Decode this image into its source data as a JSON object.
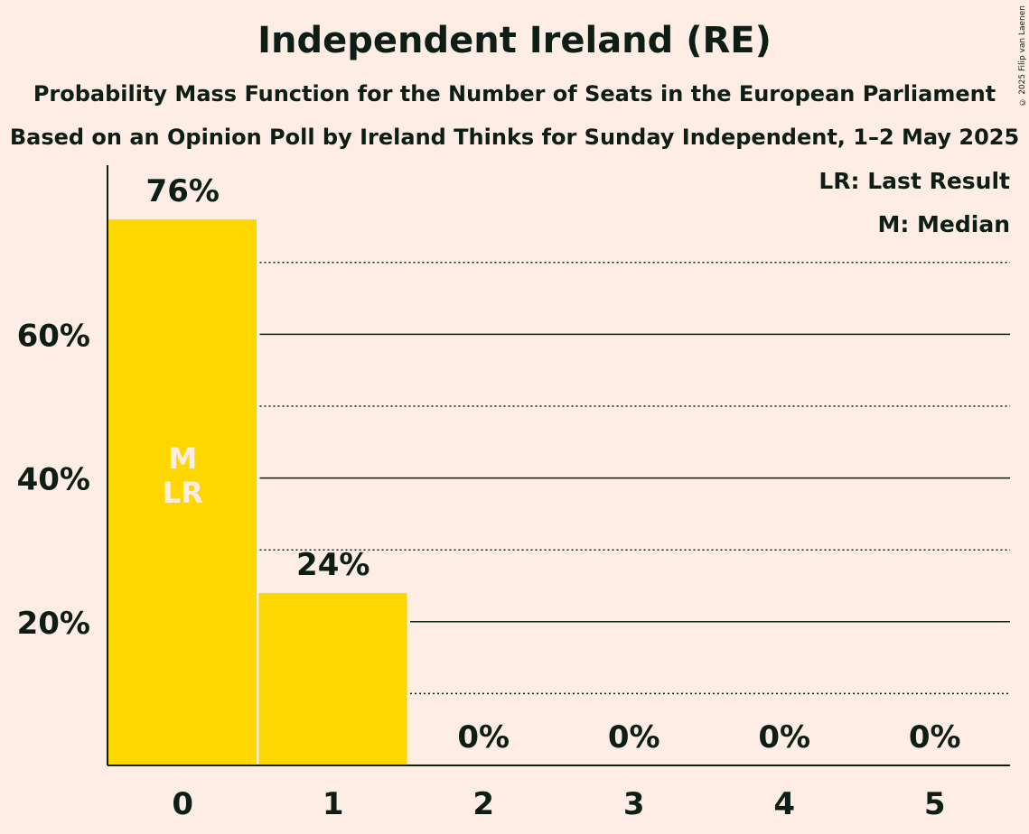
{
  "chart_data": {
    "type": "bar",
    "title": "Independent Ireland (RE)",
    "subtitle_lines": [
      "Probability Mass Function for the Number of Seats in the European Parliament",
      "Based on an Opinion Poll by Ireland Thinks for Sunday Independent, 1–2 May 2025"
    ],
    "categories": [
      "0",
      "1",
      "2",
      "3",
      "4",
      "5"
    ],
    "values": [
      76,
      24,
      0,
      0,
      0,
      0
    ],
    "value_labels": [
      "76%",
      "24%",
      "0%",
      "0%",
      "0%",
      "0%"
    ],
    "ylim": [
      0,
      83
    ],
    "yticks": [
      20,
      40,
      60
    ],
    "ytick_labels": [
      "20%",
      "40%",
      "60%"
    ],
    "minor_gridlines": [
      10,
      30,
      50,
      70
    ],
    "bar_annotation": {
      "category": "0",
      "lines": [
        "M",
        "LR"
      ]
    },
    "legend": [
      "LR: Last Result",
      "M: Median"
    ],
    "legend_position": "top-right",
    "colors": {
      "bar": "#FFD700",
      "background": "#FDEDE4",
      "text": "#0D1F14",
      "annotation": "#FDEDE4"
    }
  },
  "copyright": "© 2025 Filip van Laenen"
}
